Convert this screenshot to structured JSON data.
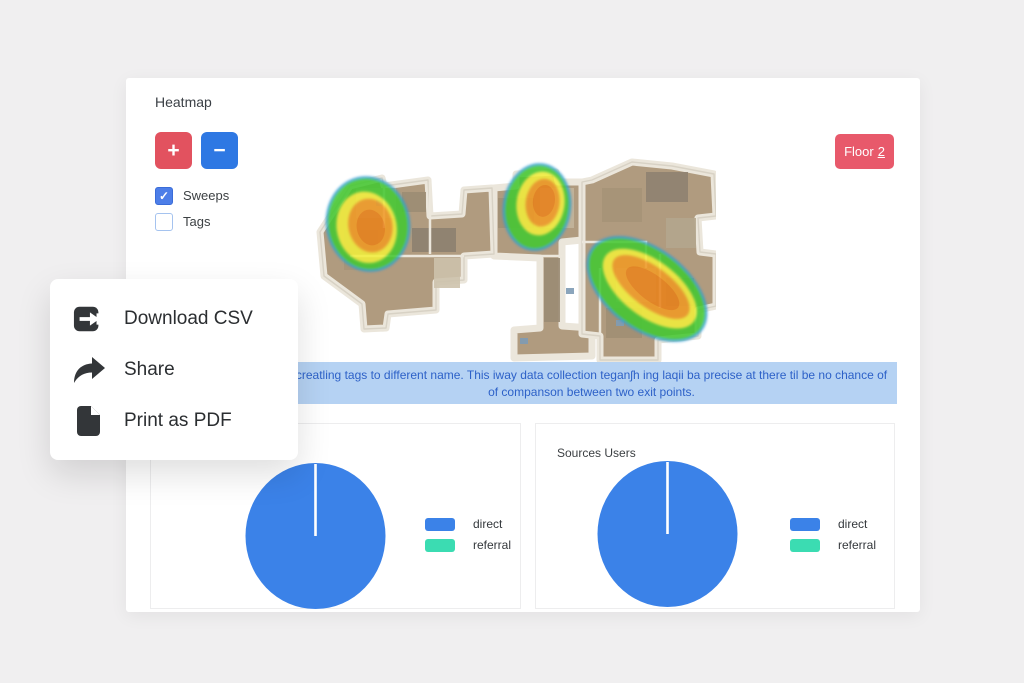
{
  "card": {
    "title": "Heatmap",
    "zoom_in_label": "+",
    "zoom_out_label": "−",
    "checkboxes": [
      {
        "label": "Sweeps",
        "checked": true
      },
      {
        "label": "Tags",
        "checked": false
      }
    ],
    "floor_button": {
      "label": "Floor",
      "number": "2"
    },
    "banner": {
      "line1": "creatling tags to different name. This iway data collection teganʃh ing laqii ba precise at there til be no chance of",
      "line2": "of companson between two exit points."
    }
  },
  "menu": {
    "items": [
      {
        "label": "Download CSV",
        "icon": "export-icon"
      },
      {
        "label": "Share",
        "icon": "share-icon"
      },
      {
        "label": "Print as PDF",
        "icon": "file-icon"
      }
    ]
  },
  "icons": {
    "check": "✓"
  },
  "chart_data": [
    {
      "type": "pie",
      "title": "",
      "labels": [
        "direct",
        "referral"
      ],
      "values": [
        99.5,
        0.5
      ],
      "colors": [
        "#3b82e8",
        "#3bdcb2"
      ],
      "legend_position": "right"
    },
    {
      "type": "pie",
      "title": "Sources Users",
      "labels": [
        "direct",
        "referral"
      ],
      "values": [
        99.5,
        0.5
      ],
      "colors": [
        "#3b82e8",
        "#3bdcb2"
      ],
      "legend_position": "right"
    }
  ],
  "colors": {
    "page_bg": "#f0eff0",
    "zoom_in_bg": "#e2525f",
    "zoom_out_bg": "#2e78e3",
    "checkbox_checked_bg": "#4d7ee8",
    "floor_btn_bg": "#e8596b",
    "banner_bg": "#b5d2f3",
    "banner_text": "#2d61c8",
    "pie_blue": "#3b82e8",
    "legend_teal": "#3bdcb2",
    "heat_green": "#45c832",
    "heat_yellow": "#f2ee3e",
    "heat_orange": "#f09a26",
    "heat_core": "#e8821c"
  }
}
